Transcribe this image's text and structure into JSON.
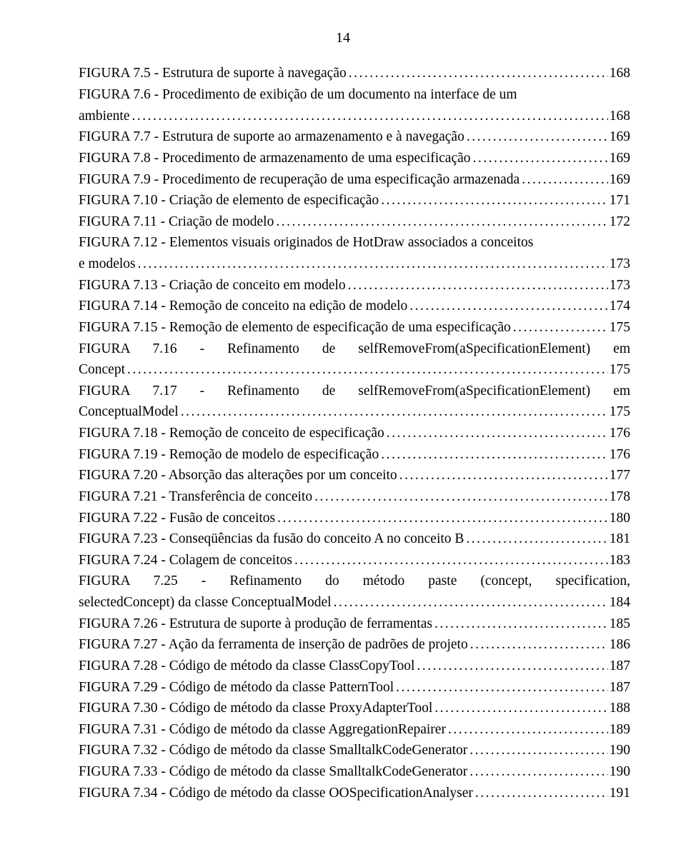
{
  "page_number": "14",
  "entries": [
    {
      "text": "FIGURA 7.5 - Estrutura de suporte à navegação",
      "page": "168"
    },
    {
      "text": "FIGURA 7.6 - Procedimento de exibição de um documento na interface de um",
      "cont": "ambiente",
      "page": "168"
    },
    {
      "text": "FIGURA 7.7 - Estrutura de suporte ao armazenamento e à navegação",
      "page": "169"
    },
    {
      "text": "FIGURA 7.8 - Procedimento de armazenamento de uma especificação",
      "page": "169"
    },
    {
      "text": "FIGURA 7.9 - Procedimento de recuperação de uma especificação armazenada",
      "page": "169"
    },
    {
      "text": "FIGURA 7.10 - Criação de elemento de especificação",
      "page": "171"
    },
    {
      "text": "FIGURA 7.11 - Criação de modelo",
      "page": "172"
    },
    {
      "text": "FIGURA 7.12 - Elementos visuais originados de HotDraw associados a conceitos",
      "cont": "e modelos",
      "page": "173"
    },
    {
      "text": "FIGURA 7.13 - Criação de conceito em modelo",
      "page": "173"
    },
    {
      "text": "FIGURA 7.14 - Remoção de conceito na edição de modelo",
      "page": "174"
    },
    {
      "text": "FIGURA 7.15 - Remoção de elemento de especificação de uma especificação",
      "page": "175"
    },
    {
      "text": "FIGURA 7.16 - Refinamento de selfRemoveFrom(aSpecificationElement) em",
      "cont": "Concept",
      "page": "175",
      "justify": true
    },
    {
      "text": "FIGURA 7.17 - Refinamento de selfRemoveFrom(aSpecificationElement) em",
      "cont": "ConceptualModel",
      "page": "175",
      "justify": true
    },
    {
      "text": "FIGURA 7.18 - Remoção de conceito de especificação",
      "page": "176"
    },
    {
      "text": "FIGURA 7.19 - Remoção de modelo de especificação",
      "page": "176"
    },
    {
      "text": "FIGURA 7.20 - Absorção das alterações por um conceito",
      "page": "177"
    },
    {
      "text": "FIGURA 7.21 - Transferência de conceito",
      "page": "178"
    },
    {
      "text": "FIGURA 7.22 - Fusão de conceitos",
      "page": "180"
    },
    {
      "text": "FIGURA 7.23 - Conseqüências da fusão do conceito A no conceito B",
      "page": "181"
    },
    {
      "text": "FIGURA 7.24 - Colagem de conceitos",
      "page": "183"
    },
    {
      "text": "FIGURA 7.25 - Refinamento do método paste (concept, specification,",
      "cont": "selectedConcept) da classe ConceptualModel",
      "page": "184",
      "justify": true
    },
    {
      "text": "FIGURA 7.26 - Estrutura de suporte à produção de ferramentas",
      "page": "185"
    },
    {
      "text": "FIGURA 7.27 - Ação da ferramenta de inserção de padrões de projeto",
      "page": "186"
    },
    {
      "text": "FIGURA 7.28 - Código de método da classe ClassCopyTool",
      "page": "187"
    },
    {
      "text": "FIGURA 7.29 - Código de método da classe PatternTool",
      "page": "187"
    },
    {
      "text": "FIGURA 7.30 - Código de método da classe ProxyAdapterTool",
      "page": "188"
    },
    {
      "text": "FIGURA 7.31 - Código de método da classe AggregationRepairer",
      "page": "189"
    },
    {
      "text": "FIGURA 7.32 - Código de método da classe SmalltalkCodeGenerator",
      "page": "190"
    },
    {
      "text": "FIGURA 7.33 - Código de método da classe SmalltalkCodeGenerator",
      "page": "190"
    },
    {
      "text": "FIGURA 7.34 - Código de método da classe OOSpecificationAnalyser",
      "page": "191"
    }
  ]
}
